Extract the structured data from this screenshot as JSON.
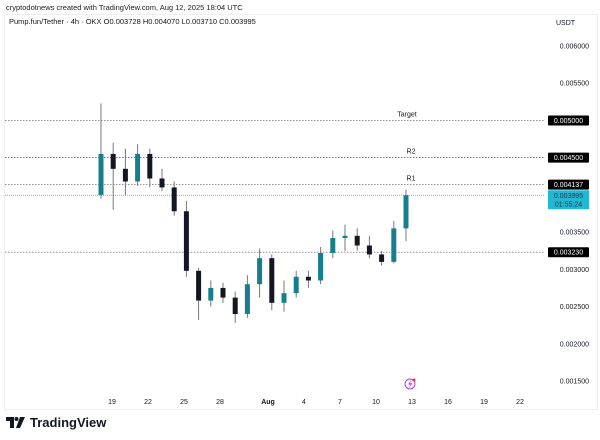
{
  "header": {
    "credit": "cryptodotnews created with TradingView.com, Aug 12, 2025 18:04 UTC",
    "legend": "Pump.fun/Tether · 4h · OKX  O0.003728  H0.004070  L0.003710  C0.003995"
  },
  "price_axis": {
    "unit": "USDT"
  },
  "footer": {
    "brand": "TradingView"
  },
  "colors": {
    "up": "#167f8e",
    "down": "#131722",
    "current": "#22b8d4",
    "level_label_bg": "#000000"
  },
  "chart_data": {
    "type": "candlestick",
    "symbol": "Pump.fun/Tether",
    "interval": "4h",
    "exchange": "OKX",
    "ylim": [
      0.0013,
      0.0063
    ],
    "y_ticks": [
      "0.006000",
      "0.005500",
      "0.003500",
      "0.003000",
      "0.002500",
      "0.002000",
      "0.001500"
    ],
    "x_ticks": [
      {
        "label": "19",
        "day": 19
      },
      {
        "label": "22",
        "day": 22
      },
      {
        "label": "25",
        "day": 25
      },
      {
        "label": "28",
        "day": 28
      },
      {
        "label": "Aug",
        "day": 32
      },
      {
        "label": "4",
        "day": 35
      },
      {
        "label": "7",
        "day": 38
      },
      {
        "label": "10",
        "day": 41
      },
      {
        "label": "13",
        "day": 44
      },
      {
        "label": "16",
        "day": 47
      },
      {
        "label": "19",
        "day": 50
      },
      {
        "label": "22",
        "day": 53
      }
    ],
    "levels": [
      {
        "name": "Target",
        "value": "0.005000"
      },
      {
        "name": "R2",
        "value": "0.004500"
      },
      {
        "name": "R1",
        "value": "0.004137"
      },
      {
        "name": "",
        "value": "0.003230"
      }
    ],
    "current": {
      "price": "0.003995",
      "countdown": "01:55:24"
    },
    "candles": [
      {
        "date": "Jul 18",
        "o": 0.004,
        "h": 0.00523,
        "l": 0.00395,
        "c": 0.00455
      },
      {
        "date": "Jul 19",
        "o": 0.00455,
        "h": 0.0047,
        "l": 0.0038,
        "c": 0.00435
      },
      {
        "date": "Jul 20",
        "o": 0.00435,
        "h": 0.00462,
        "l": 0.004,
        "c": 0.00418
      },
      {
        "date": "Jul 21",
        "o": 0.00418,
        "h": 0.00468,
        "l": 0.00412,
        "c": 0.00455
      },
      {
        "date": "Jul 22",
        "o": 0.00455,
        "h": 0.00462,
        "l": 0.0041,
        "c": 0.00422
      },
      {
        "date": "Jul 23",
        "o": 0.00422,
        "h": 0.00435,
        "l": 0.00405,
        "c": 0.0041
      },
      {
        "date": "Jul 24",
        "o": 0.0041,
        "h": 0.00418,
        "l": 0.00372,
        "c": 0.00378
      },
      {
        "date": "Jul 25",
        "o": 0.00378,
        "h": 0.00392,
        "l": 0.0029,
        "c": 0.00298
      },
      {
        "date": "Jul 26",
        "o": 0.00298,
        "h": 0.00302,
        "l": 0.00232,
        "c": 0.00258
      },
      {
        "date": "Jul 27",
        "o": 0.00258,
        "h": 0.00285,
        "l": 0.0025,
        "c": 0.00275
      },
      {
        "date": "Jul 28",
        "o": 0.00275,
        "h": 0.00282,
        "l": 0.00255,
        "c": 0.00262
      },
      {
        "date": "Jul 29",
        "o": 0.00262,
        "h": 0.0027,
        "l": 0.00228,
        "c": 0.0024
      },
      {
        "date": "Jul 30",
        "o": 0.0024,
        "h": 0.00292,
        "l": 0.00235,
        "c": 0.0028
      },
      {
        "date": "Jul 31",
        "o": 0.0028,
        "h": 0.00328,
        "l": 0.00262,
        "c": 0.00315
      },
      {
        "date": "Aug 1",
        "o": 0.00315,
        "h": 0.0032,
        "l": 0.00245,
        "c": 0.00255
      },
      {
        "date": "Aug 2",
        "o": 0.00255,
        "h": 0.00285,
        "l": 0.00243,
        "c": 0.00268
      },
      {
        "date": "Aug 3",
        "o": 0.00268,
        "h": 0.00298,
        "l": 0.00262,
        "c": 0.0029
      },
      {
        "date": "Aug 4",
        "o": 0.0029,
        "h": 0.00298,
        "l": 0.00275,
        "c": 0.00285
      },
      {
        "date": "Aug 5",
        "o": 0.00285,
        "h": 0.0033,
        "l": 0.0028,
        "c": 0.00322
      },
      {
        "date": "Aug 6",
        "o": 0.00322,
        "h": 0.00352,
        "l": 0.00315,
        "c": 0.00342
      },
      {
        "date": "Aug 7",
        "o": 0.00342,
        "h": 0.0036,
        "l": 0.00325,
        "c": 0.00345
      },
      {
        "date": "Aug 8",
        "o": 0.00345,
        "h": 0.00355,
        "l": 0.00325,
        "c": 0.00332
      },
      {
        "date": "Aug 9",
        "o": 0.00332,
        "h": 0.00345,
        "l": 0.00315,
        "c": 0.0032
      },
      {
        "date": "Aug 10",
        "o": 0.0032,
        "h": 0.00325,
        "l": 0.00305,
        "c": 0.0031
      },
      {
        "date": "Aug 11",
        "o": 0.0031,
        "h": 0.00365,
        "l": 0.00308,
        "c": 0.00355
      },
      {
        "date": "Aug 12",
        "o": 0.00355,
        "h": 0.00407,
        "l": 0.00338,
        "c": 0.003995
      }
    ]
  }
}
